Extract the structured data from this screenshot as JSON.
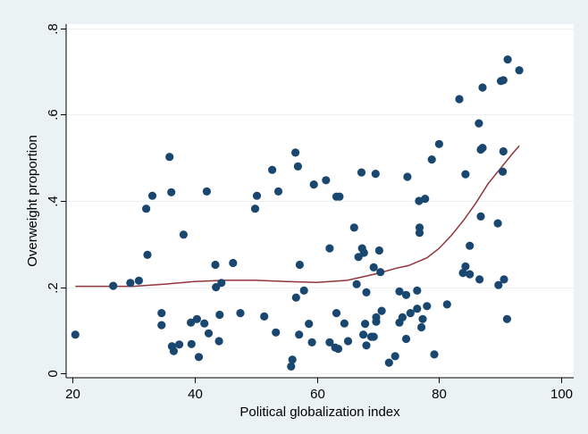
{
  "colors": {
    "outer_background": "#eaf2f3",
    "plot_background": "#ffffff",
    "points": "#1a476f",
    "smooth_line": "#90353b"
  },
  "chart_data": {
    "type": "scatter",
    "title": "",
    "xlabel": "Political globalization index",
    "ylabel": "Overweight proportion",
    "xlim": [
      19,
      102
    ],
    "ylim": [
      -0.01,
      0.81
    ],
    "xticks": [
      20,
      40,
      60,
      80,
      100
    ],
    "xtick_labels": [
      "20",
      "40",
      "60",
      "80",
      "100"
    ],
    "yticks": [
      0,
      0.2,
      0.4,
      0.6,
      0.8
    ],
    "ytick_labels": [
      "0",
      ".2",
      ".4",
      ".6",
      ".8"
    ],
    "grid": "horizontal",
    "legend": "none",
    "points": [
      [
        20.5,
        0.09
      ],
      [
        26.7,
        0.203
      ],
      [
        29.5,
        0.21
      ],
      [
        30.9,
        0.215
      ],
      [
        32.1,
        0.382
      ],
      [
        32.3,
        0.275
      ],
      [
        33.1,
        0.412
      ],
      [
        34.6,
        0.14
      ],
      [
        34.6,
        0.112
      ],
      [
        35.9,
        0.502
      ],
      [
        36.2,
        0.42
      ],
      [
        36.3,
        0.063
      ],
      [
        36.6,
        0.052
      ],
      [
        37.5,
        0.067
      ],
      [
        38.2,
        0.322
      ],
      [
        39.4,
        0.118
      ],
      [
        39.5,
        0.068
      ],
      [
        40.4,
        0.126
      ],
      [
        40.7,
        0.038
      ],
      [
        41.6,
        0.116
      ],
      [
        42.0,
        0.422
      ],
      [
        42.3,
        0.093
      ],
      [
        43.4,
        0.252
      ],
      [
        43.5,
        0.2
      ],
      [
        44.0,
        0.075
      ],
      [
        44.1,
        0.136
      ],
      [
        44.4,
        0.21
      ],
      [
        46.3,
        0.256
      ],
      [
        47.5,
        0.14
      ],
      [
        49.9,
        0.382
      ],
      [
        50.2,
        0.412
      ],
      [
        51.4,
        0.132
      ],
      [
        52.7,
        0.472
      ],
      [
        53.3,
        0.095
      ],
      [
        53.7,
        0.422
      ],
      [
        55.8,
        0.016
      ],
      [
        56.0,
        0.032
      ],
      [
        56.5,
        0.512
      ],
      [
        56.6,
        0.176
      ],
      [
        56.9,
        0.48
      ],
      [
        57.1,
        0.09
      ],
      [
        57.2,
        0.252
      ],
      [
        57.9,
        0.192
      ],
      [
        58.7,
        0.115
      ],
      [
        59.2,
        0.072
      ],
      [
        59.5,
        0.438
      ],
      [
        61.5,
        0.448
      ],
      [
        62.1,
        0.072
      ],
      [
        62.1,
        0.29
      ],
      [
        63.0,
        0.06
      ],
      [
        63.2,
        0.41
      ],
      [
        63.2,
        0.14
      ],
      [
        63.5,
        0.057
      ],
      [
        63.7,
        0.41
      ],
      [
        64.5,
        0.116
      ],
      [
        65.1,
        0.075
      ],
      [
        66.1,
        0.338
      ],
      [
        66.5,
        0.207
      ],
      [
        66.8,
        0.27
      ],
      [
        67.3,
        0.466
      ],
      [
        67.4,
        0.29
      ],
      [
        67.6,
        0.09
      ],
      [
        67.7,
        0.28
      ],
      [
        67.9,
        0.115
      ],
      [
        68.1,
        0.065
      ],
      [
        68.1,
        0.188
      ],
      [
        68.9,
        0.085
      ],
      [
        69.3,
        0.085
      ],
      [
        69.3,
        0.246
      ],
      [
        69.6,
        0.463
      ],
      [
        69.7,
        0.13
      ],
      [
        69.7,
        0.12
      ],
      [
        70.2,
        0.285
      ],
      [
        70.4,
        0.235
      ],
      [
        70.6,
        0.145
      ],
      [
        71.8,
        0.025
      ],
      [
        72.8,
        0.04
      ],
      [
        73.5,
        0.118
      ],
      [
        73.5,
        0.19
      ],
      [
        74.0,
        0.13
      ],
      [
        74.6,
        0.182
      ],
      [
        74.6,
        0.08
      ],
      [
        74.8,
        0.456
      ],
      [
        75.3,
        0.14
      ],
      [
        76.4,
        0.15
      ],
      [
        76.4,
        0.192
      ],
      [
        76.7,
        0.4
      ],
      [
        76.8,
        0.338
      ],
      [
        76.8,
        0.326
      ],
      [
        77.1,
        0.107
      ],
      [
        77.3,
        0.126
      ],
      [
        77.7,
        0.405
      ],
      [
        78.0,
        0.156
      ],
      [
        78.8,
        0.496
      ],
      [
        79.2,
        0.044
      ],
      [
        80.0,
        0.532
      ],
      [
        81.3,
        0.16
      ],
      [
        83.3,
        0.636
      ],
      [
        83.9,
        0.233
      ],
      [
        84.3,
        0.462
      ],
      [
        84.3,
        0.248
      ],
      [
        85.0,
        0.296
      ],
      [
        85.0,
        0.23
      ],
      [
        86.5,
        0.58
      ],
      [
        86.6,
        0.218
      ],
      [
        86.8,
        0.364
      ],
      [
        86.8,
        0.519
      ],
      [
        87.1,
        0.663
      ],
      [
        87.1,
        0.523
      ],
      [
        89.6,
        0.348
      ],
      [
        89.7,
        0.205
      ],
      [
        90.1,
        0.678
      ],
      [
        90.4,
        0.468
      ],
      [
        90.5,
        0.515
      ],
      [
        90.5,
        0.68
      ],
      [
        90.6,
        0.218
      ],
      [
        91.1,
        0.126
      ],
      [
        91.2,
        0.728
      ],
      [
        93.1,
        0.703
      ]
    ],
    "smooth": [
      [
        20.5,
        0.202
      ],
      [
        25,
        0.202
      ],
      [
        30,
        0.202
      ],
      [
        35,
        0.207
      ],
      [
        40,
        0.213
      ],
      [
        45,
        0.216
      ],
      [
        50,
        0.216
      ],
      [
        55,
        0.213
      ],
      [
        60,
        0.211
      ],
      [
        65,
        0.216
      ],
      [
        70,
        0.232
      ],
      [
        73,
        0.244
      ],
      [
        75,
        0.25
      ],
      [
        78,
        0.268
      ],
      [
        80,
        0.29
      ],
      [
        82,
        0.32
      ],
      [
        84,
        0.355
      ],
      [
        86,
        0.395
      ],
      [
        88,
        0.44
      ],
      [
        90,
        0.475
      ],
      [
        92,
        0.51
      ],
      [
        93.1,
        0.528
      ]
    ]
  }
}
